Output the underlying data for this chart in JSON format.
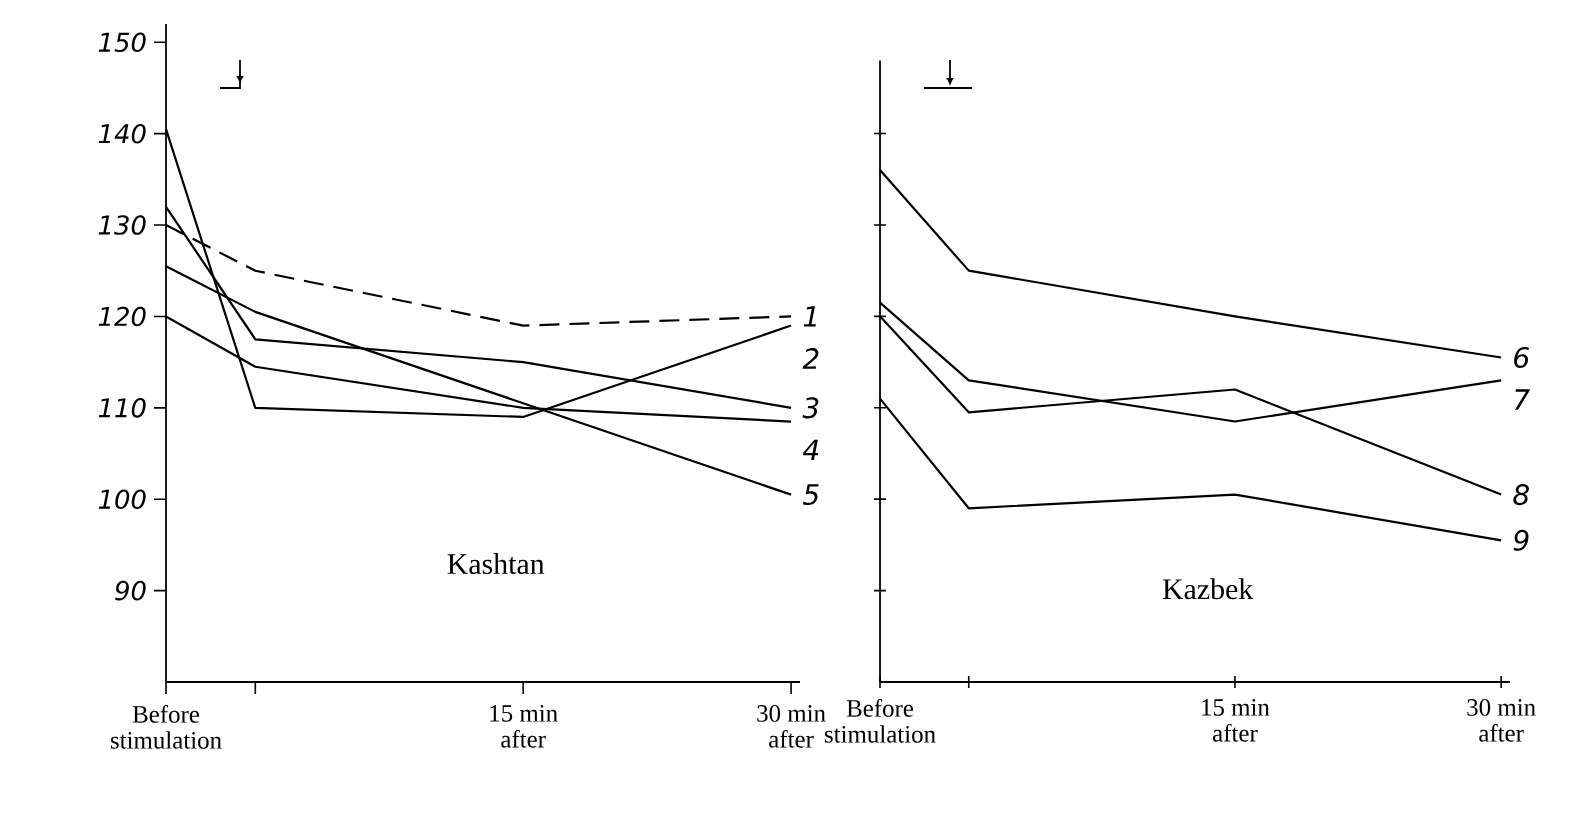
{
  "chart_data": [
    {
      "type": "line",
      "title": "Kashtan",
      "x": [
        -5,
        0,
        15,
        30
      ],
      "xlim": [
        -5,
        30.5
      ],
      "ylim": [
        80,
        152
      ],
      "xticks": [
        {
          "value": -5,
          "label": "Before stimulation"
        },
        {
          "value": 0,
          "label": null
        },
        {
          "value": 15,
          "label": "15 min after"
        },
        {
          "value": 30,
          "label": "30 min after"
        }
      ],
      "yticks": [
        90,
        100,
        110,
        120,
        130,
        140,
        150
      ],
      "series": [
        {
          "name": "1",
          "color": "#000000",
          "line_style": "dashed",
          "values": [
            130,
            125,
            119,
            120
          ]
        },
        {
          "name": "2",
          "color": "#000000",
          "values": [
            140.5,
            110,
            109,
            119
          ]
        },
        {
          "name": "3",
          "color": "#000000",
          "values": [
            132,
            117.5,
            115,
            110
          ]
        },
        {
          "name": "4",
          "color": "#000000",
          "values": [
            120,
            114.5,
            110,
            108.5
          ]
        },
        {
          "name": "5",
          "color": "#000000",
          "values": [
            125.5,
            120.5,
            110.5,
            100.5
          ]
        }
      ]
    },
    {
      "type": "line",
      "title": "Kazbek",
      "x": [
        -5,
        0,
        15,
        30
      ],
      "xlim": [
        -5,
        30.5
      ],
      "ylim": [
        80,
        148
      ],
      "xticks": [
        {
          "value": -5,
          "label": "Before stimulation"
        },
        {
          "value": 0,
          "label": null
        },
        {
          "value": 15,
          "label": "15 min after"
        },
        {
          "value": 30,
          "label": "30 min after"
        }
      ],
      "yticks": [
        90,
        100,
        110,
        120,
        130,
        140
      ],
      "tick_labels": "x",
      "series": [
        {
          "name": "6",
          "color": "#000000",
          "values": [
            136,
            125,
            120,
            115.5
          ]
        },
        {
          "name": "7",
          "color": "#000000",
          "values": [
            121.5,
            113,
            108.5,
            113
          ]
        },
        {
          "name": "8",
          "color": "#000000",
          "values": [
            120,
            109.5,
            112,
            100.5
          ]
        },
        {
          "name": "9",
          "color": "#000000",
          "values": [
            111,
            99,
            100.5,
            95.5
          ]
        }
      ]
    }
  ]
}
